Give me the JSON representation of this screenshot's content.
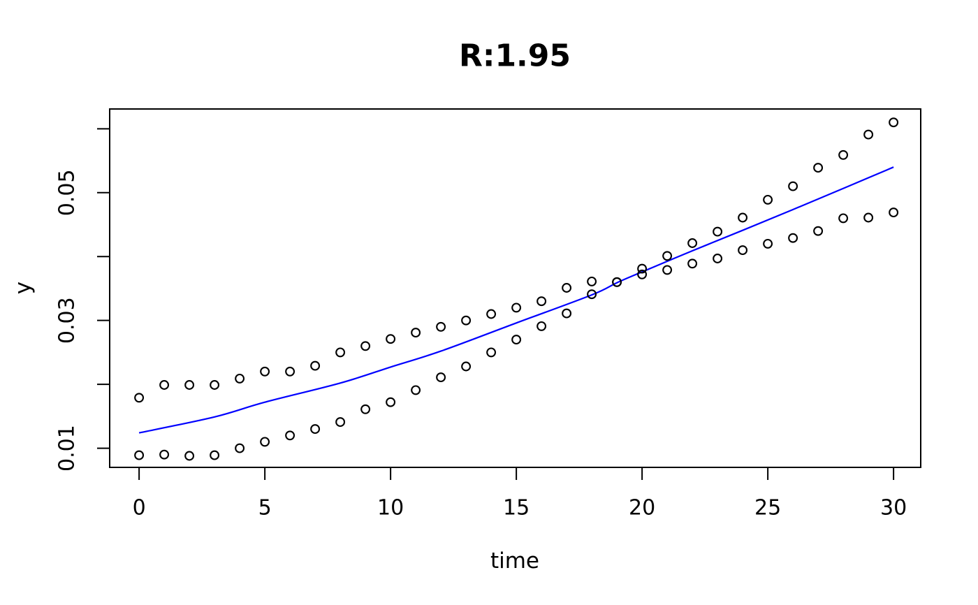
{
  "title": "R:1.95",
  "axes": {
    "x": {
      "label": "time",
      "tick_values": [
        0,
        5,
        10,
        15,
        20,
        25,
        30
      ],
      "tick_labels": [
        "0",
        "5",
        "10",
        "15",
        "20",
        "25",
        "30"
      ]
    },
    "y": {
      "label": "y",
      "tick_values": [
        0.01,
        0.02,
        0.03,
        0.04,
        0.05,
        0.06
      ],
      "tick_labels": [
        "0.01",
        "",
        "0.03",
        "",
        "0.05",
        ""
      ]
    }
  },
  "colors": {
    "points": "#000000",
    "fit_line": "#0000ff",
    "axis": "#000000",
    "background": "#ffffff"
  },
  "chart_data": {
    "type": "scatter",
    "title": "R:1.95",
    "xlabel": "time",
    "ylabel": "y",
    "xlim": [
      -1.17,
      31.08
    ],
    "ylim": [
      0.007,
      0.0631
    ],
    "grid": false,
    "legend": "none",
    "x": [
      0,
      1,
      2,
      3,
      4,
      5,
      6,
      7,
      8,
      9,
      10,
      11,
      12,
      13,
      14,
      15,
      16,
      17,
      18,
      19,
      20,
      21,
      22,
      23,
      24,
      25,
      26,
      27,
      28,
      29,
      30
    ],
    "series": [
      {
        "name": "upper-bound-points",
        "marker": "open-circle",
        "color": "#000000",
        "values": [
          0.0179,
          0.0199,
          0.0199,
          0.0199,
          0.0209,
          0.022,
          0.022,
          0.0229,
          0.025,
          0.026,
          0.0271,
          0.0281,
          0.029,
          0.03,
          0.031,
          0.032,
          0.033,
          0.0351,
          0.0361,
          0.036,
          0.0381,
          0.0401,
          0.0421,
          0.0439,
          0.0461,
          0.0489,
          0.051,
          0.0539,
          0.0559,
          0.0591,
          0.061
        ]
      },
      {
        "name": "lower-bound-points",
        "marker": "open-circle",
        "color": "#000000",
        "values": [
          0.0089,
          0.009,
          0.0088,
          0.0089,
          0.01,
          0.011,
          0.012,
          0.013,
          0.0141,
          0.0161,
          0.0172,
          0.0191,
          0.0211,
          0.0228,
          0.025,
          0.027,
          0.0291,
          0.0311,
          0.0341,
          0.036,
          0.0372,
          0.0379,
          0.0389,
          0.0397,
          0.041,
          0.042,
          0.0429,
          0.044,
          0.046,
          0.0461,
          0.0469
        ]
      },
      {
        "name": "fitted-curve",
        "type": "line",
        "color": "#0000ff",
        "x": [
          0,
          3,
          5,
          8,
          10,
          12,
          15,
          18,
          19,
          20,
          22,
          24,
          27,
          30
        ],
        "values": [
          0.0124,
          0.0149,
          0.0172,
          0.0202,
          0.0227,
          0.0252,
          0.0296,
          0.034,
          0.0359,
          0.0376,
          0.0409,
          0.0441,
          0.049,
          0.054
        ]
      }
    ]
  }
}
